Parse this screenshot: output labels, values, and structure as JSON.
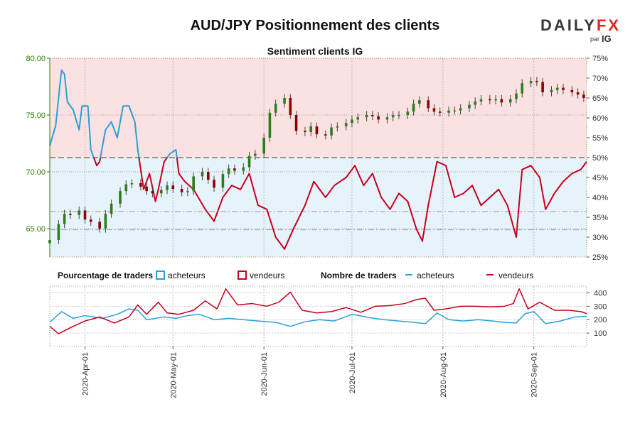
{
  "title": "AUD/JPY Positionnement des clients",
  "brand": {
    "name_part1": "DAILY",
    "name_part2": "FX",
    "by": "par",
    "ig": "IG",
    "color_dark": "#3a3a3a",
    "color_red": "#e2231a"
  },
  "colors": {
    "buyers": "#2a9fd6",
    "sellers": "#c8001e",
    "up": "#2e7d1a",
    "down": "#8b0000",
    "pos_green": "#2e7d00",
    "bg_red": "#fbe1e1",
    "bg_blue": "#e6f3fb"
  },
  "legend": {
    "pct_label": "Pourcentage de traders",
    "pct_buyers": "acheteurs",
    "pct_sellers": "vendeurs",
    "count_label": "Nombre de traders",
    "count_buyers": "acheteurs",
    "count_sellers": "vendeurs"
  },
  "chart_data": [
    {
      "type": "candlestick",
      "title": "Sentiment clients IG",
      "price_axis": {
        "ylim": [
          62.5,
          80.0
        ],
        "ticks": [
          "65.00",
          "70.00",
          "75.00",
          "80.00"
        ]
      },
      "pct_axis": {
        "ylim": [
          25,
          75
        ],
        "ticks": [
          "25%",
          "30%",
          "35%",
          "40%",
          "45%",
          "50%",
          "55%",
          "60%",
          "65%",
          "70%",
          "75%"
        ]
      },
      "x_range": [
        "2020-03-20",
        "2020-09-19"
      ],
      "x_ticks": [
        "2020-Apr-01",
        "2020-May-01",
        "2020-Jun-01",
        "2020-Jul-01",
        "2020-Aug-01",
        "2020-Sep-01"
      ],
      "reference_lines": {
        "pct_50": 50,
        "price_high": 66.5,
        "price_low": 64.9
      },
      "close_series": [
        {
          "d": "2020-03-20",
          "c": 64.0
        },
        {
          "d": "2020-03-23",
          "c": 65.4
        },
        {
          "d": "2020-03-25",
          "c": 66.3
        },
        {
          "d": "2020-03-27",
          "c": 66.2
        },
        {
          "d": "2020-03-30",
          "c": 66.6
        },
        {
          "d": "2020-04-01",
          "c": 65.8
        },
        {
          "d": "2020-04-03",
          "c": 65.6
        },
        {
          "d": "2020-04-06",
          "c": 65.0
        },
        {
          "d": "2020-04-08",
          "c": 66.3
        },
        {
          "d": "2020-04-10",
          "c": 67.2
        },
        {
          "d": "2020-04-13",
          "c": 68.3
        },
        {
          "d": "2020-04-15",
          "c": 68.9
        },
        {
          "d": "2020-04-17",
          "c": 69.0
        },
        {
          "d": "2020-04-20",
          "c": 68.7
        },
        {
          "d": "2020-04-22",
          "c": 68.3
        },
        {
          "d": "2020-04-24",
          "c": 68.1
        },
        {
          "d": "2020-04-27",
          "c": 68.4
        },
        {
          "d": "2020-04-29",
          "c": 68.8
        },
        {
          "d": "2020-05-01",
          "c": 68.5
        },
        {
          "d": "2020-05-04",
          "c": 68.2
        },
        {
          "d": "2020-05-06",
          "c": 68.3
        },
        {
          "d": "2020-05-08",
          "c": 69.6
        },
        {
          "d": "2020-05-11",
          "c": 70.0
        },
        {
          "d": "2020-05-13",
          "c": 69.3
        },
        {
          "d": "2020-05-15",
          "c": 68.6
        },
        {
          "d": "2020-05-18",
          "c": 69.8
        },
        {
          "d": "2020-05-20",
          "c": 70.3
        },
        {
          "d": "2020-05-22",
          "c": 70.1
        },
        {
          "d": "2020-05-25",
          "c": 70.4
        },
        {
          "d": "2020-05-27",
          "c": 71.4
        },
        {
          "d": "2020-05-29",
          "c": 71.6
        },
        {
          "d": "2020-06-01",
          "c": 73.0
        },
        {
          "d": "2020-06-03",
          "c": 75.2
        },
        {
          "d": "2020-06-05",
          "c": 76.0
        },
        {
          "d": "2020-06-08",
          "c": 76.5
        },
        {
          "d": "2020-06-10",
          "c": 75.0
        },
        {
          "d": "2020-06-12",
          "c": 73.6
        },
        {
          "d": "2020-06-15",
          "c": 73.5
        },
        {
          "d": "2020-06-17",
          "c": 74.0
        },
        {
          "d": "2020-06-19",
          "c": 73.3
        },
        {
          "d": "2020-06-22",
          "c": 73.2
        },
        {
          "d": "2020-06-24",
          "c": 73.9
        },
        {
          "d": "2020-06-26",
          "c": 74.0
        },
        {
          "d": "2020-06-29",
          "c": 74.3
        },
        {
          "d": "2020-07-01",
          "c": 74.6
        },
        {
          "d": "2020-07-03",
          "c": 74.8
        },
        {
          "d": "2020-07-06",
          "c": 75.0
        },
        {
          "d": "2020-07-08",
          "c": 74.9
        },
        {
          "d": "2020-07-10",
          "c": 74.6
        },
        {
          "d": "2020-07-13",
          "c": 74.8
        },
        {
          "d": "2020-07-15",
          "c": 75.0
        },
        {
          "d": "2020-07-17",
          "c": 75.0
        },
        {
          "d": "2020-07-20",
          "c": 75.3
        },
        {
          "d": "2020-07-22",
          "c": 76.0
        },
        {
          "d": "2020-07-24",
          "c": 76.3
        },
        {
          "d": "2020-07-27",
          "c": 75.6
        },
        {
          "d": "2020-07-29",
          "c": 75.3
        },
        {
          "d": "2020-07-31",
          "c": 75.2
        },
        {
          "d": "2020-08-03",
          "c": 75.4
        },
        {
          "d": "2020-08-05",
          "c": 75.4
        },
        {
          "d": "2020-08-07",
          "c": 75.6
        },
        {
          "d": "2020-08-10",
          "c": 75.9
        },
        {
          "d": "2020-08-12",
          "c": 76.2
        },
        {
          "d": "2020-08-14",
          "c": 76.4
        },
        {
          "d": "2020-08-17",
          "c": 76.3
        },
        {
          "d": "2020-08-19",
          "c": 76.4
        },
        {
          "d": "2020-08-21",
          "c": 76.1
        },
        {
          "d": "2020-08-24",
          "c": 76.4
        },
        {
          "d": "2020-08-26",
          "c": 76.9
        },
        {
          "d": "2020-08-28",
          "c": 77.8
        },
        {
          "d": "2020-08-31",
          "c": 78.0
        },
        {
          "d": "2020-09-02",
          "c": 77.9
        },
        {
          "d": "2020-09-04",
          "c": 77.0
        },
        {
          "d": "2020-09-07",
          "c": 77.2
        },
        {
          "d": "2020-09-09",
          "c": 77.4
        },
        {
          "d": "2020-09-11",
          "c": 77.2
        },
        {
          "d": "2020-09-14",
          "c": 77.0
        },
        {
          "d": "2020-09-16",
          "c": 76.8
        },
        {
          "d": "2020-09-18",
          "c": 76.5
        }
      ],
      "net_long_pct": [
        {
          "d": "2020-03-20",
          "v": 53
        },
        {
          "d": "2020-03-22",
          "v": 58
        },
        {
          "d": "2020-03-24",
          "v": 72
        },
        {
          "d": "2020-03-25",
          "v": 71
        },
        {
          "d": "2020-03-26",
          "v": 64
        },
        {
          "d": "2020-03-28",
          "v": 62
        },
        {
          "d": "2020-03-30",
          "v": 57
        },
        {
          "d": "2020-03-31",
          "v": 63
        },
        {
          "d": "2020-04-02",
          "v": 63
        },
        {
          "d": "2020-04-03",
          "v": 52
        },
        {
          "d": "2020-04-05",
          "v": 48
        },
        {
          "d": "2020-04-06",
          "v": 49
        },
        {
          "d": "2020-04-08",
          "v": 57
        },
        {
          "d": "2020-04-10",
          "v": 59
        },
        {
          "d": "2020-04-12",
          "v": 55
        },
        {
          "d": "2020-04-14",
          "v": 63
        },
        {
          "d": "2020-04-16",
          "v": 63
        },
        {
          "d": "2020-04-18",
          "v": 59
        },
        {
          "d": "2020-04-19",
          "v": 52
        },
        {
          "d": "2020-04-21",
          "v": 42
        },
        {
          "d": "2020-04-23",
          "v": 46
        },
        {
          "d": "2020-04-25",
          "v": 39
        },
        {
          "d": "2020-04-26",
          "v": 42
        },
        {
          "d": "2020-04-28",
          "v": 49
        },
        {
          "d": "2020-04-30",
          "v": 51
        },
        {
          "d": "2020-05-02",
          "v": 52
        },
        {
          "d": "2020-05-03",
          "v": 46
        },
        {
          "d": "2020-05-05",
          "v": 44
        },
        {
          "d": "2020-05-08",
          "v": 42
        },
        {
          "d": "2020-05-12",
          "v": 37
        },
        {
          "d": "2020-05-15",
          "v": 34
        },
        {
          "d": "2020-05-18",
          "v": 40
        },
        {
          "d": "2020-05-21",
          "v": 43
        },
        {
          "d": "2020-05-24",
          "v": 42
        },
        {
          "d": "2020-05-27",
          "v": 46
        },
        {
          "d": "2020-05-30",
          "v": 38
        },
        {
          "d": "2020-06-02",
          "v": 37
        },
        {
          "d": "2020-06-05",
          "v": 30
        },
        {
          "d": "2020-06-08",
          "v": 27
        },
        {
          "d": "2020-06-11",
          "v": 32
        },
        {
          "d": "2020-06-15",
          "v": 38
        },
        {
          "d": "2020-06-18",
          "v": 44
        },
        {
          "d": "2020-06-22",
          "v": 40
        },
        {
          "d": "2020-06-25",
          "v": 43
        },
        {
          "d": "2020-06-29",
          "v": 45
        },
        {
          "d": "2020-07-02",
          "v": 48
        },
        {
          "d": "2020-07-05",
          "v": 43
        },
        {
          "d": "2020-07-08",
          "v": 46
        },
        {
          "d": "2020-07-11",
          "v": 40
        },
        {
          "d": "2020-07-14",
          "v": 37
        },
        {
          "d": "2020-07-17",
          "v": 41
        },
        {
          "d": "2020-07-20",
          "v": 39
        },
        {
          "d": "2020-07-23",
          "v": 32
        },
        {
          "d": "2020-07-25",
          "v": 29
        },
        {
          "d": "2020-07-27",
          "v": 38
        },
        {
          "d": "2020-07-30",
          "v": 49
        },
        {
          "d": "2020-08-02",
          "v": 48
        },
        {
          "d": "2020-08-05",
          "v": 40
        },
        {
          "d": "2020-08-08",
          "v": 41
        },
        {
          "d": "2020-08-11",
          "v": 43
        },
        {
          "d": "2020-08-14",
          "v": 38
        },
        {
          "d": "2020-08-17",
          "v": 40
        },
        {
          "d": "2020-08-20",
          "v": 42
        },
        {
          "d": "2020-08-23",
          "v": 38
        },
        {
          "d": "2020-08-26",
          "v": 30
        },
        {
          "d": "2020-08-28",
          "v": 47
        },
        {
          "d": "2020-08-31",
          "v": 48
        },
        {
          "d": "2020-09-03",
          "v": 45
        },
        {
          "d": "2020-09-05",
          "v": 37
        },
        {
          "d": "2020-09-08",
          "v": 41
        },
        {
          "d": "2020-09-11",
          "v": 44
        },
        {
          "d": "2020-09-14",
          "v": 46
        },
        {
          "d": "2020-09-17",
          "v": 47
        },
        {
          "d": "2020-09-19",
          "v": 49
        }
      ]
    },
    {
      "type": "line",
      "title": "Nombre de traders",
      "ylim": [
        0,
        450
      ],
      "ticks": [
        "100",
        "200",
        "300",
        "400"
      ],
      "x_range": [
        "2020-03-20",
        "2020-09-19"
      ],
      "series": [
        {
          "name": "acheteurs",
          "points": [
            {
              "d": "2020-03-20",
              "v": 180
            },
            {
              "d": "2020-03-24",
              "v": 260
            },
            {
              "d": "2020-03-28",
              "v": 210
            },
            {
              "d": "2020-04-01",
              "v": 230
            },
            {
              "d": "2020-04-07",
              "v": 210
            },
            {
              "d": "2020-04-12",
              "v": 240
            },
            {
              "d": "2020-04-16",
              "v": 280
            },
            {
              "d": "2020-04-19",
              "v": 270
            },
            {
              "d": "2020-04-22",
              "v": 200
            },
            {
              "d": "2020-04-28",
              "v": 220
            },
            {
              "d": "2020-05-02",
              "v": 210
            },
            {
              "d": "2020-05-06",
              "v": 230
            },
            {
              "d": "2020-05-10",
              "v": 240
            },
            {
              "d": "2020-05-15",
              "v": 200
            },
            {
              "d": "2020-05-20",
              "v": 210
            },
            {
              "d": "2020-05-25",
              "v": 200
            },
            {
              "d": "2020-05-30",
              "v": 190
            },
            {
              "d": "2020-06-05",
              "v": 180
            },
            {
              "d": "2020-06-10",
              "v": 150
            },
            {
              "d": "2020-06-15",
              "v": 185
            },
            {
              "d": "2020-06-20",
              "v": 200
            },
            {
              "d": "2020-06-25",
              "v": 190
            },
            {
              "d": "2020-07-01",
              "v": 240
            },
            {
              "d": "2020-07-07",
              "v": 215
            },
            {
              "d": "2020-07-12",
              "v": 200
            },
            {
              "d": "2020-07-17",
              "v": 190
            },
            {
              "d": "2020-07-22",
              "v": 180
            },
            {
              "d": "2020-07-26",
              "v": 170
            },
            {
              "d": "2020-07-30",
              "v": 250
            },
            {
              "d": "2020-08-03",
              "v": 200
            },
            {
              "d": "2020-08-08",
              "v": 190
            },
            {
              "d": "2020-08-13",
              "v": 200
            },
            {
              "d": "2020-08-18",
              "v": 190
            },
            {
              "d": "2020-08-22",
              "v": 180
            },
            {
              "d": "2020-08-26",
              "v": 175
            },
            {
              "d": "2020-08-29",
              "v": 245
            },
            {
              "d": "2020-09-01",
              "v": 260
            },
            {
              "d": "2020-09-05",
              "v": 170
            },
            {
              "d": "2020-09-10",
              "v": 190
            },
            {
              "d": "2020-09-15",
              "v": 220
            },
            {
              "d": "2020-09-19",
              "v": 225
            }
          ]
        },
        {
          "name": "vendeurs",
          "points": [
            {
              "d": "2020-03-20",
              "v": 150
            },
            {
              "d": "2020-03-23",
              "v": 95
            },
            {
              "d": "2020-03-27",
              "v": 140
            },
            {
              "d": "2020-04-01",
              "v": 190
            },
            {
              "d": "2020-04-06",
              "v": 220
            },
            {
              "d": "2020-04-11",
              "v": 175
            },
            {
              "d": "2020-04-16",
              "v": 220
            },
            {
              "d": "2020-04-19",
              "v": 310
            },
            {
              "d": "2020-04-22",
              "v": 240
            },
            {
              "d": "2020-04-26",
              "v": 330
            },
            {
              "d": "2020-04-29",
              "v": 250
            },
            {
              "d": "2020-05-03",
              "v": 240
            },
            {
              "d": "2020-05-08",
              "v": 270
            },
            {
              "d": "2020-05-12",
              "v": 340
            },
            {
              "d": "2020-05-16",
              "v": 280
            },
            {
              "d": "2020-05-19",
              "v": 430
            },
            {
              "d": "2020-05-23",
              "v": 310
            },
            {
              "d": "2020-05-28",
              "v": 320
            },
            {
              "d": "2020-06-02",
              "v": 300
            },
            {
              "d": "2020-06-06",
              "v": 330
            },
            {
              "d": "2020-06-10",
              "v": 405
            },
            {
              "d": "2020-06-14",
              "v": 270
            },
            {
              "d": "2020-06-19",
              "v": 250
            },
            {
              "d": "2020-06-24",
              "v": 260
            },
            {
              "d": "2020-06-29",
              "v": 290
            },
            {
              "d": "2020-07-04",
              "v": 255
            },
            {
              "d": "2020-07-09",
              "v": 300
            },
            {
              "d": "2020-07-14",
              "v": 305
            },
            {
              "d": "2020-07-19",
              "v": 320
            },
            {
              "d": "2020-07-23",
              "v": 350
            },
            {
              "d": "2020-07-26",
              "v": 360
            },
            {
              "d": "2020-07-29",
              "v": 270
            },
            {
              "d": "2020-08-02",
              "v": 280
            },
            {
              "d": "2020-08-07",
              "v": 300
            },
            {
              "d": "2020-08-12",
              "v": 300
            },
            {
              "d": "2020-08-17",
              "v": 295
            },
            {
              "d": "2020-08-22",
              "v": 300
            },
            {
              "d": "2020-08-25",
              "v": 320
            },
            {
              "d": "2020-08-27",
              "v": 430
            },
            {
              "d": "2020-08-30",
              "v": 280
            },
            {
              "d": "2020-09-03",
              "v": 330
            },
            {
              "d": "2020-09-08",
              "v": 270
            },
            {
              "d": "2020-09-13",
              "v": 270
            },
            {
              "d": "2020-09-17",
              "v": 260
            },
            {
              "d": "2020-09-19",
              "v": 245
            }
          ]
        }
      ]
    }
  ]
}
